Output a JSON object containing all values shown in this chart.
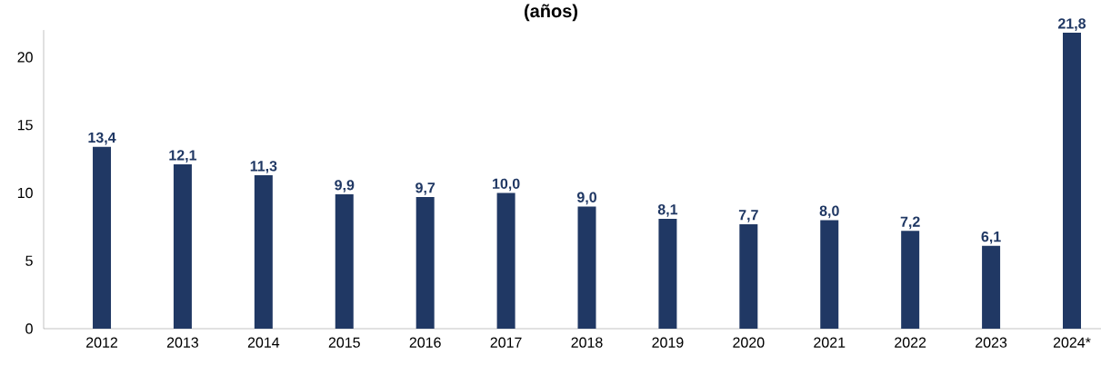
{
  "chart_data": {
    "type": "bar",
    "title": "(años)",
    "categories": [
      "2012",
      "2013",
      "2014",
      "2015",
      "2016",
      "2017",
      "2018",
      "2019",
      "2020",
      "2021",
      "2022",
      "2023",
      "2024*"
    ],
    "values": [
      13.4,
      12.1,
      11.3,
      9.9,
      9.7,
      10.0,
      9.0,
      8.1,
      7.7,
      8.0,
      7.2,
      6.1,
      21.8
    ],
    "value_labels": [
      "13,4",
      "12,1",
      "11,3",
      "9,9",
      "9,7",
      "10,0",
      "9,0",
      "8,1",
      "7,7",
      "8,0",
      "7,2",
      "6,1",
      "21,8"
    ],
    "color": "#203864",
    "ylim": [
      0,
      22
    ],
    "yticks": [
      0,
      5,
      10,
      15,
      20
    ],
    "grid": false
  }
}
